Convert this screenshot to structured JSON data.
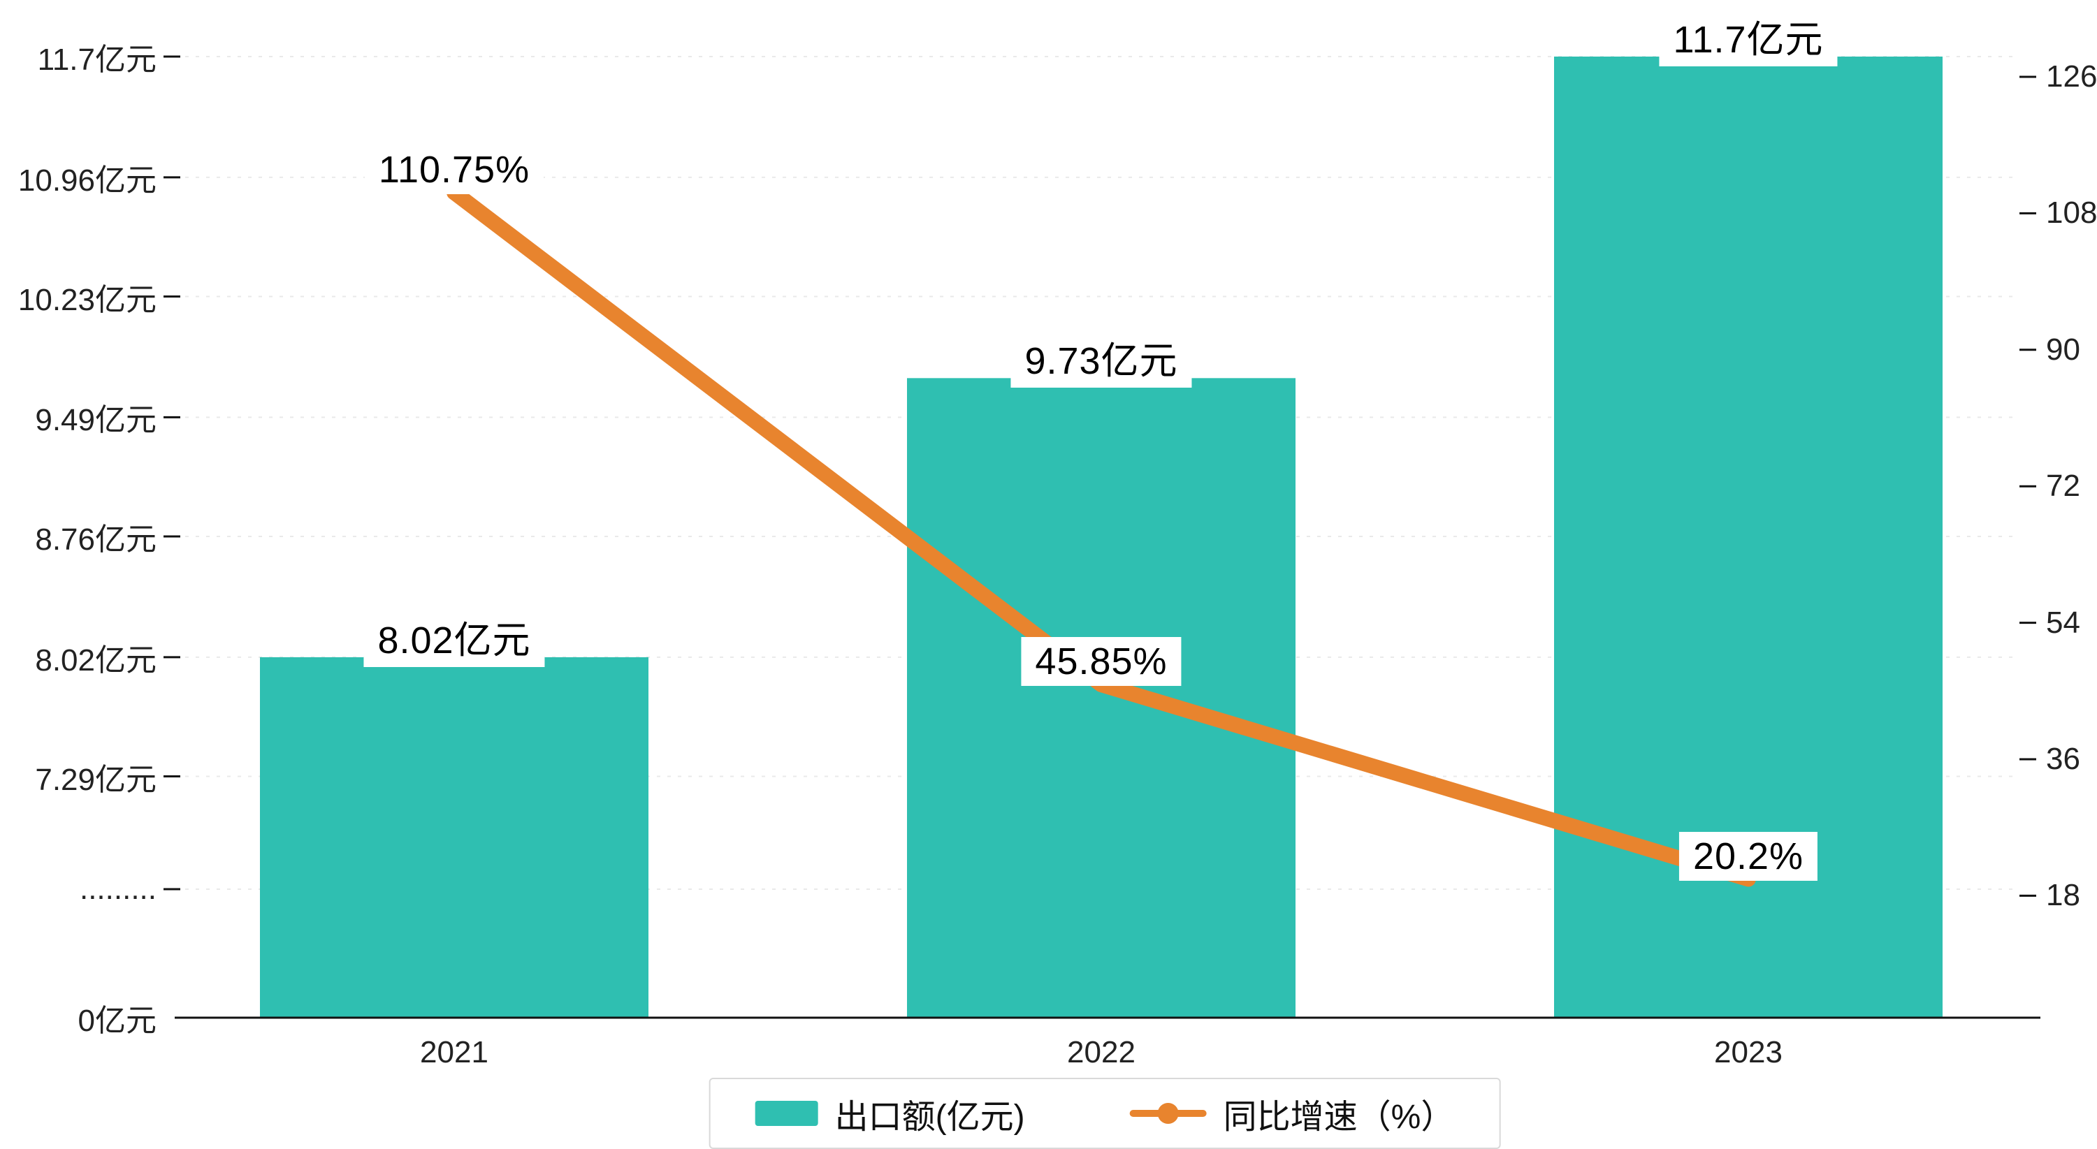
{
  "chart_data": {
    "type": "combo",
    "title": "",
    "categories": [
      "2021",
      "2022",
      "2023"
    ],
    "series": [
      {
        "name": "出口额(亿元)",
        "type": "bar",
        "values": [
          8.02,
          9.73,
          11.7
        ],
        "data_labels": [
          "8.02亿元",
          "9.73亿元",
          "11.7亿元"
        ],
        "color": "#2fbfb1"
      },
      {
        "name": "同比增速（%）",
        "type": "line",
        "values": [
          110.75,
          45.85,
          20.2
        ],
        "data_labels": [
          "110.75%",
          "45.85%",
          "20.2%"
        ],
        "color": "#e8842e"
      }
    ],
    "left_axis": {
      "tick_labels": [
        "11.7亿元",
        "10.96亿元",
        "10.23亿元",
        "9.49亿元",
        "8.76亿元",
        "8.02亿元",
        "7.29亿元",
        ".........",
        "0亿元"
      ],
      "tick_values": [
        11.7,
        10.96,
        10.23,
        9.49,
        8.76,
        8.02,
        7.29,
        null,
        0
      ],
      "has_break": true,
      "unit": "亿元"
    },
    "right_axis": {
      "tick_labels": [
        "126",
        "108",
        "90",
        "72",
        "54",
        "36",
        "18"
      ],
      "tick_values": [
        126,
        108,
        90,
        72,
        54,
        36,
        18
      ],
      "unit": "%"
    },
    "legend": {
      "items": [
        {
          "label": "出口额(亿元)",
          "marker": "bar",
          "color": "#2fbfb1"
        },
        {
          "label": "同比增速（%）",
          "marker": "line",
          "color": "#e8842e"
        }
      ]
    },
    "grid": {
      "style": "dashed",
      "color": "#e9e9e9"
    },
    "axis_color": "#111111",
    "background": "#ffffff"
  }
}
